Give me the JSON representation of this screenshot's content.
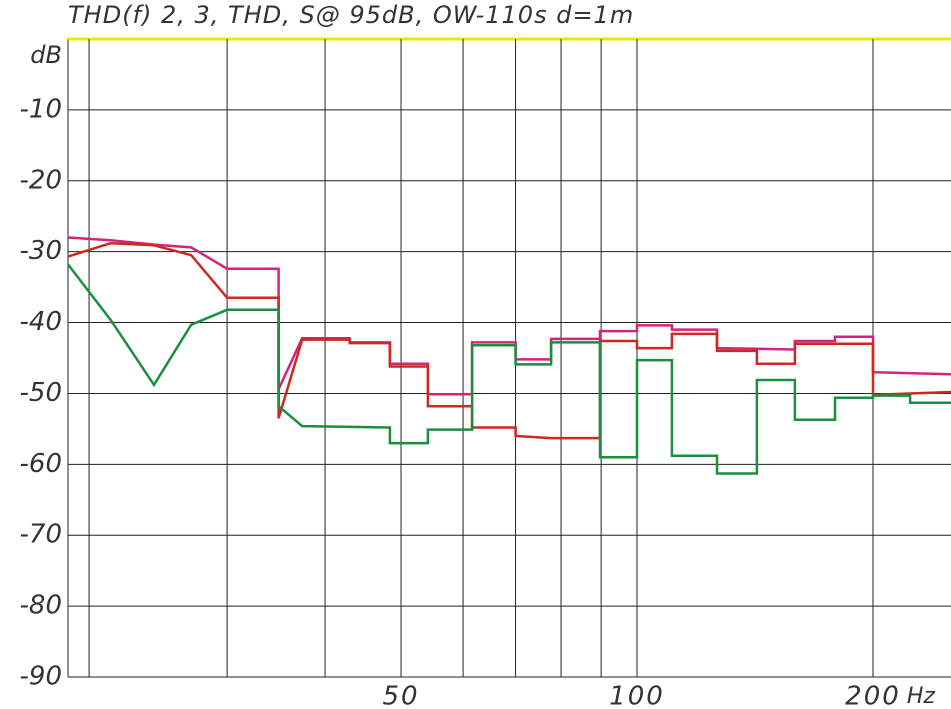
{
  "chart_data": {
    "type": "line",
    "title": "THD(f) 2, 3, THD, S@ 95dB,  OW-110s d=1m",
    "ylabel": "dB",
    "xlabel": "Hz",
    "xscale": "log",
    "grid": true,
    "xlim": [
      18.8,
      251.5
    ],
    "ylim": [
      -90,
      0
    ],
    "xticks": [
      50,
      100,
      200
    ],
    "xminor": [
      20,
      30,
      40,
      60,
      70,
      80,
      90
    ],
    "yticks": [
      -90,
      -80,
      -70,
      -60,
      -50,
      -40,
      -30,
      -20,
      -10
    ],
    "series": [
      {
        "name": "THD",
        "color": "#d4237f",
        "x": [
          18.8,
          21.3,
          24.2,
          27.0,
          30,
          34.9,
          34.9,
          37.4,
          43.0,
          43.0,
          48.4,
          48.4,
          54.1,
          54.1,
          61.6,
          61.6,
          70,
          70,
          77.7,
          77.7,
          89.7,
          89.7,
          100,
          100,
          110.8,
          110.8,
          126.5,
          126.5,
          159,
          159,
          178.9,
          178.9,
          200,
          200,
          251.5
        ],
        "values": [
          -28.0,
          -28.4,
          -29.0,
          -29.4,
          -32.4,
          -32.4,
          -49.4,
          -42.2,
          -42.2,
          -42.8,
          -42.8,
          -45.8,
          -45.8,
          -50.1,
          -50.1,
          -42.8,
          -42.8,
          -45.2,
          -45.2,
          -42.3,
          -42.3,
          -41.2,
          -41.2,
          -40.4,
          -40.4,
          -41.0,
          -41.0,
          -43.6,
          -43.8,
          -42.6,
          -42.6,
          -42.0,
          -42.0,
          -47.0,
          -47.3
        ]
      },
      {
        "name": "2",
        "color": "#cc2a1e",
        "x": [
          18.8,
          21.3,
          24.2,
          27.0,
          30,
          34.9,
          34.9,
          37.4,
          43.0,
          43.0,
          48.4,
          48.4,
          54.1,
          54.1,
          61.6,
          61.6,
          70,
          70,
          77.7,
          89.7,
          89.7,
          100,
          100,
          110.8,
          110.8,
          126.5,
          126.5,
          142.2,
          142.2,
          159,
          159,
          200,
          200,
          251.5
        ],
        "values": [
          -30.7,
          -28.8,
          -29.1,
          -30.5,
          -36.5,
          -36.5,
          -53.5,
          -42.4,
          -42.4,
          -42.9,
          -42.9,
          -46.2,
          -46.2,
          -51.8,
          -51.8,
          -54.8,
          -54.8,
          -56.0,
          -56.3,
          -56.3,
          -42.6,
          -42.6,
          -43.6,
          -43.6,
          -41.6,
          -41.6,
          -44.0,
          -44.0,
          -45.8,
          -45.8,
          -43.0,
          -43.0,
          -50.2,
          -49.8
        ]
      },
      {
        "name": "3",
        "color": "#1a8f3e",
        "x": [
          18.8,
          21.3,
          24.2,
          27.0,
          30,
          34.9,
          34.9,
          37.4,
          48.4,
          48.4,
          54.1,
          54.1,
          61.6,
          61.6,
          70,
          70,
          77.7,
          77.7,
          89.7,
          89.7,
          100,
          100,
          110.8,
          110.8,
          126.5,
          126.5,
          142.2,
          142.2,
          159,
          159,
          178.9,
          178.9,
          200,
          200,
          223,
          223,
          251.5
        ],
        "values": [
          -31.8,
          -39.6,
          -48.8,
          -40.3,
          -38.2,
          -38.2,
          -51.8,
          -54.6,
          -54.8,
          -57.0,
          -57.0,
          -55.1,
          -55.1,
          -43.2,
          -43.2,
          -45.9,
          -45.9,
          -42.8,
          -42.8,
          -59.0,
          -59.0,
          -45.3,
          -45.3,
          -58.8,
          -58.8,
          -61.3,
          -61.3,
          -48.1,
          -48.1,
          -53.7,
          -53.7,
          -50.6,
          -50.6,
          -50.3,
          -50.3,
          -51.3,
          -51.3
        ]
      }
    ]
  }
}
